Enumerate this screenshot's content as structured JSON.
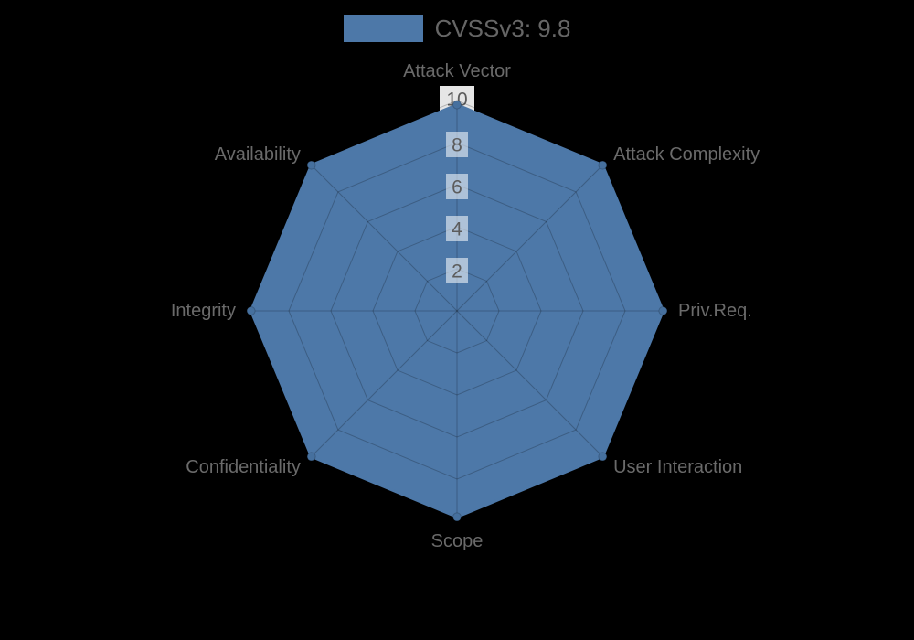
{
  "chart_data": {
    "type": "radar",
    "legend": {
      "label": "CVSSv3: 9.8",
      "position": "top"
    },
    "categories": [
      "Attack Vector",
      "Attack Complexity",
      "Priv.Req.",
      "User Interaction",
      "Scope",
      "Confidentiality",
      "Integrity",
      "Availability"
    ],
    "series": [
      {
        "name": "CVSSv3: 9.8",
        "values": [
          9.8,
          9.8,
          9.8,
          9.8,
          9.8,
          9.8,
          9.8,
          9.8
        ]
      }
    ],
    "scale": {
      "min": 0,
      "max": 10,
      "tick_step": 2,
      "tick_labels": [
        "2",
        "4",
        "6",
        "8",
        "10"
      ],
      "grid_shape": "polygon",
      "grid_on": true
    },
    "colors": {
      "background": "#000000",
      "series_fill": "#4d78a8",
      "series_border": "#4d78a8",
      "point_fill": "#46709e",
      "grid_line": "rgba(0,0,0,0.22)",
      "axis_label": "#6a6a6a",
      "tick_text": "#5c5c5c",
      "tick_backdrop": "rgba(255,255,255,0.55)",
      "tick_backdrop_outer": "rgba(255,255,255,0.9)",
      "legend_text": "#666666"
    }
  }
}
